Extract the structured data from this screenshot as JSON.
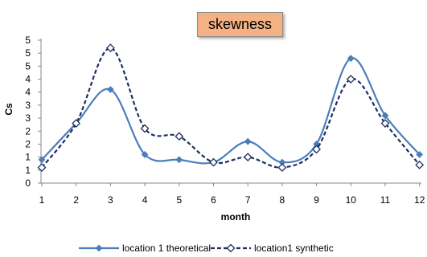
{
  "chart_data": {
    "type": "line",
    "title": "skewness",
    "xlabel": "month",
    "ylabel": "Cs",
    "categories": [
      "1",
      "2",
      "3",
      "4",
      "5",
      "6",
      "7",
      "8",
      "9",
      "10",
      "11",
      "12"
    ],
    "y_tick_labels": [
      "0",
      "1",
      "1",
      "2",
      "2",
      "3",
      "3",
      "4",
      "4",
      "5",
      "5",
      "5"
    ],
    "grid": false,
    "legend_position": "bottom",
    "series": [
      {
        "name": "location 1 theoretical",
        "color": "#4a7ebb",
        "style": "solid",
        "marker": "filled-diamond",
        "values": [
          0.9,
          2.3,
          3.6,
          1.1,
          0.9,
          0.8,
          1.6,
          0.8,
          1.5,
          4.8,
          2.6,
          1.1
        ]
      },
      {
        "name": "location1 synthetic",
        "color": "#1f2f5f",
        "style": "dashed",
        "marker": "open-diamond",
        "values": [
          0.6,
          2.3,
          5.2,
          2.1,
          1.8,
          0.8,
          1.0,
          0.6,
          1.3,
          4.0,
          2.3,
          0.7
        ]
      }
    ]
  }
}
